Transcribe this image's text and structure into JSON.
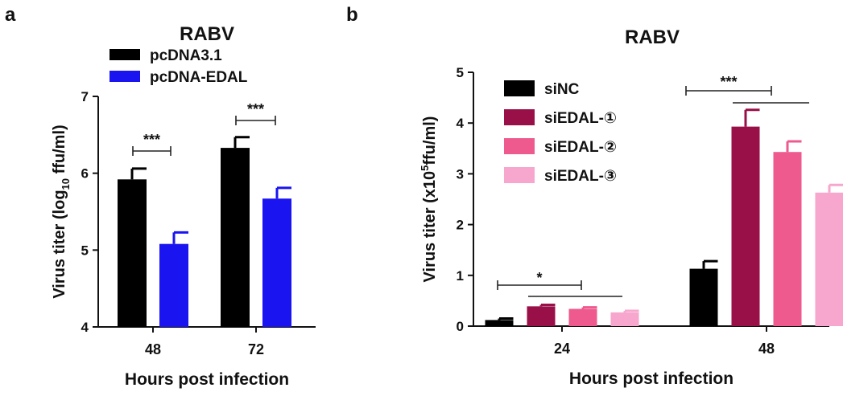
{
  "chart_data": [
    {
      "panel_label": "a",
      "type": "bar",
      "title": "RABV",
      "xlabel": "Hours post infection",
      "ylabel_main": "Virus titer (log",
      "ylabel_sub": "10",
      "ylabel_tail": " ffu/ml)",
      "ylim": [
        4,
        7
      ],
      "yticks": [
        "4",
        "5",
        "6",
        "7"
      ],
      "categories": [
        "48",
        "72"
      ],
      "series": [
        {
          "name": "pcDNA3.1",
          "color": "#000000",
          "values": [
            5.92,
            6.33
          ],
          "errors": [
            0.14,
            0.14
          ]
        },
        {
          "name": "pcDNA-EDAL",
          "color": "#1a14f0",
          "values": [
            5.08,
            5.67
          ],
          "errors": [
            0.15,
            0.14
          ]
        }
      ],
      "significance": [
        {
          "label": "***",
          "category": 0
        },
        {
          "label": "***",
          "category": 1
        }
      ],
      "legend_position": "top-left"
    },
    {
      "panel_label": "b",
      "type": "bar",
      "title": "RABV",
      "xlabel": "Hours post infection",
      "ylabel_main": "Virus titer (x10",
      "ylabel_sup": "5",
      "ylabel_tail": "ffu/ml)",
      "ylim": [
        0,
        5
      ],
      "yticks": [
        "0",
        "1",
        "2",
        "3",
        "4",
        "5"
      ],
      "categories": [
        "24",
        "48"
      ],
      "series": [
        {
          "name": "siNC",
          "color": "#000000",
          "values": [
            0.12,
            1.13
          ],
          "errors": [
            0.03,
            0.15
          ]
        },
        {
          "name": "siEDAL-①",
          "color": "#990f48",
          "values": [
            0.39,
            3.93
          ],
          "errors": [
            0.03,
            0.33
          ]
        },
        {
          "name": "siEDAL-②",
          "color": "#ee5a8e",
          "values": [
            0.34,
            3.43
          ],
          "errors": [
            0.03,
            0.21
          ]
        },
        {
          "name": "siEDAL-③",
          "color": "#f7a6cd",
          "values": [
            0.27,
            2.63
          ],
          "errors": [
            0.03,
            0.15
          ]
        }
      ],
      "significance": [
        {
          "label": "*",
          "category": 0
        },
        {
          "label": "***",
          "category": 1
        }
      ],
      "legend_position": "top-left"
    }
  ]
}
